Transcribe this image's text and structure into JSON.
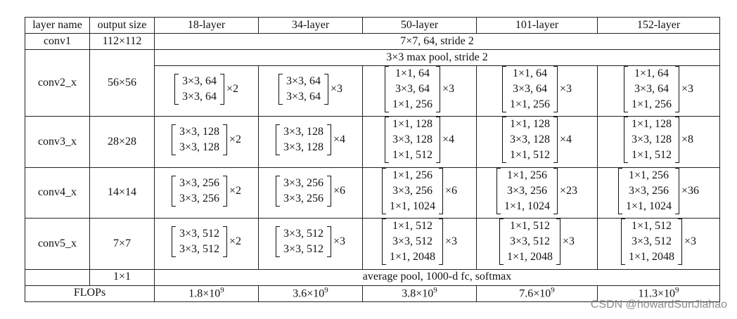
{
  "headers": [
    "layer name",
    "output size",
    "18-layer",
    "34-layer",
    "50-layer",
    "101-layer",
    "152-layer"
  ],
  "conv1": {
    "name": "conv1",
    "size": "112×112",
    "desc": "7×7, 64, stride 2"
  },
  "pool": {
    "desc": "3×3 max pool, stride 2"
  },
  "stages": [
    {
      "name": "conv2_x",
      "size": "56×56",
      "blocks": [
        {
          "lines": [
            "3×3, 64",
            "3×3, 64"
          ],
          "mult": "×2"
        },
        {
          "lines": [
            "3×3, 64",
            "3×3, 64"
          ],
          "mult": "×3"
        },
        {
          "lines": [
            "1×1, 64",
            "3×3, 64",
            "1×1, 256"
          ],
          "mult": "×3"
        },
        {
          "lines": [
            "1×1, 64",
            "3×3, 64",
            "1×1, 256"
          ],
          "mult": "×3"
        },
        {
          "lines": [
            "1×1, 64",
            "3×3, 64",
            "1×1, 256"
          ],
          "mult": "×3"
        }
      ]
    },
    {
      "name": "conv3_x",
      "size": "28×28",
      "blocks": [
        {
          "lines": [
            "3×3, 128",
            "3×3, 128"
          ],
          "mult": "×2"
        },
        {
          "lines": [
            "3×3, 128",
            "3×3, 128"
          ],
          "mult": "×4"
        },
        {
          "lines": [
            "1×1, 128",
            "3×3, 128",
            "1×1, 512"
          ],
          "mult": "×4"
        },
        {
          "lines": [
            "1×1, 128",
            "3×3, 128",
            "1×1, 512"
          ],
          "mult": "×4"
        },
        {
          "lines": [
            "1×1, 128",
            "3×3, 128",
            "1×1, 512"
          ],
          "mult": "×8"
        }
      ]
    },
    {
      "name": "conv4_x",
      "size": "14×14",
      "blocks": [
        {
          "lines": [
            "3×3, 256",
            "3×3, 256"
          ],
          "mult": "×2"
        },
        {
          "lines": [
            "3×3, 256",
            "3×3, 256"
          ],
          "mult": "×6"
        },
        {
          "lines": [
            "1×1, 256",
            "3×3, 256",
            "1×1, 1024"
          ],
          "mult": "×6"
        },
        {
          "lines": [
            "1×1, 256",
            "3×3, 256",
            "1×1, 1024"
          ],
          "mult": "×23"
        },
        {
          "lines": [
            "1×1, 256",
            "3×3, 256",
            "1×1, 1024"
          ],
          "mult": "×36"
        }
      ]
    },
    {
      "name": "conv5_x",
      "size": "7×7",
      "blocks": [
        {
          "lines": [
            "3×3, 512",
            "3×3, 512"
          ],
          "mult": "×2"
        },
        {
          "lines": [
            "3×3, 512",
            "3×3, 512"
          ],
          "mult": "×3"
        },
        {
          "lines": [
            "1×1, 512",
            "3×3, 512",
            "1×1, 2048"
          ],
          "mult": "×3"
        },
        {
          "lines": [
            "1×1, 512",
            "3×3, 512",
            "1×1, 2048"
          ],
          "mult": "×3"
        },
        {
          "lines": [
            "1×1, 512",
            "3×3, 512",
            "1×1, 2048"
          ],
          "mult": "×3"
        }
      ]
    }
  ],
  "avgpool": {
    "size": "1×1",
    "desc": "average pool, 1000-d fc, softmax"
  },
  "flops": {
    "label": "FLOPs",
    "values": [
      {
        "base": "1.8×10",
        "exp": "9"
      },
      {
        "base": "3.6×10",
        "exp": "9"
      },
      {
        "base": "3.8×10",
        "exp": "9"
      },
      {
        "base": "7.6×10",
        "exp": "9"
      },
      {
        "base": "11.3×10",
        "exp": "9"
      }
    ]
  },
  "watermark": "CSDN @howardSunJiahao"
}
